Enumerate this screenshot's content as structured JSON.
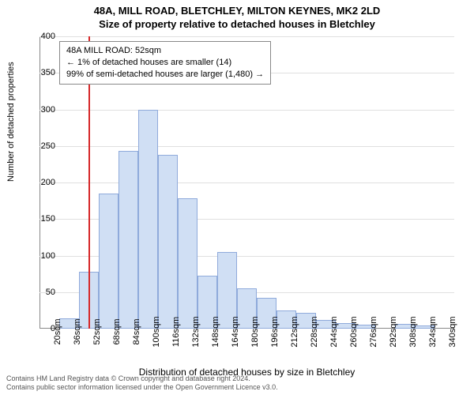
{
  "titles": {
    "line1": "48A, MILL ROAD, BLETCHLEY, MILTON KEYNES, MK2 2LD",
    "line2": "Size of property relative to detached houses in Bletchley"
  },
  "axes": {
    "ylabel": "Number of detached properties",
    "xlabel": "Distribution of detached houses by size in Bletchley",
    "ylim": [
      0,
      400
    ],
    "ytick_step": 50,
    "xlim": [
      12,
      348
    ],
    "xtick_start": 20,
    "xtick_step": 16,
    "xtick_count": 21,
    "xtick_suffix": "sqm"
  },
  "style": {
    "bar_fill": "#d0dff4",
    "bar_border": "#8faadb",
    "grid_color": "#e0e0e0",
    "axis_color": "#888888",
    "ref_line_color": "#d62728",
    "background": "#ffffff",
    "title_fontsize": 13,
    "tick_fontsize": 11,
    "xlabel_fontsize": 12,
    "annot_fontsize": 11,
    "footer_fontsize": 9,
    "footer_color": "#555555"
  },
  "chart": {
    "type": "histogram",
    "bin_width": 16,
    "bins": [
      {
        "x": 20,
        "count": 0
      },
      {
        "x": 36,
        "count": 14
      },
      {
        "x": 52,
        "count": 78
      },
      {
        "x": 68,
        "count": 185
      },
      {
        "x": 84,
        "count": 243
      },
      {
        "x": 100,
        "count": 300
      },
      {
        "x": 116,
        "count": 238
      },
      {
        "x": 132,
        "count": 178
      },
      {
        "x": 148,
        "count": 72
      },
      {
        "x": 164,
        "count": 105
      },
      {
        "x": 180,
        "count": 55
      },
      {
        "x": 196,
        "count": 42
      },
      {
        "x": 212,
        "count": 25
      },
      {
        "x": 228,
        "count": 22
      },
      {
        "x": 244,
        "count": 12
      },
      {
        "x": 260,
        "count": 8
      },
      {
        "x": 276,
        "count": 5
      },
      {
        "x": 292,
        "count": 0
      },
      {
        "x": 308,
        "count": 6
      },
      {
        "x": 324,
        "count": 4
      },
      {
        "x": 340,
        "count": 0
      }
    ],
    "reference_x": 52
  },
  "annotation": {
    "line1": "48A MILL ROAD: 52sqm",
    "line2": "← 1% of detached houses are smaller (14)",
    "line3": "99% of semi-detached houses are larger (1,480) →"
  },
  "footer": {
    "line1": "Contains HM Land Registry data © Crown copyright and database right 2024.",
    "line2": "Contains public sector information licensed under the Open Government Licence v3.0."
  }
}
